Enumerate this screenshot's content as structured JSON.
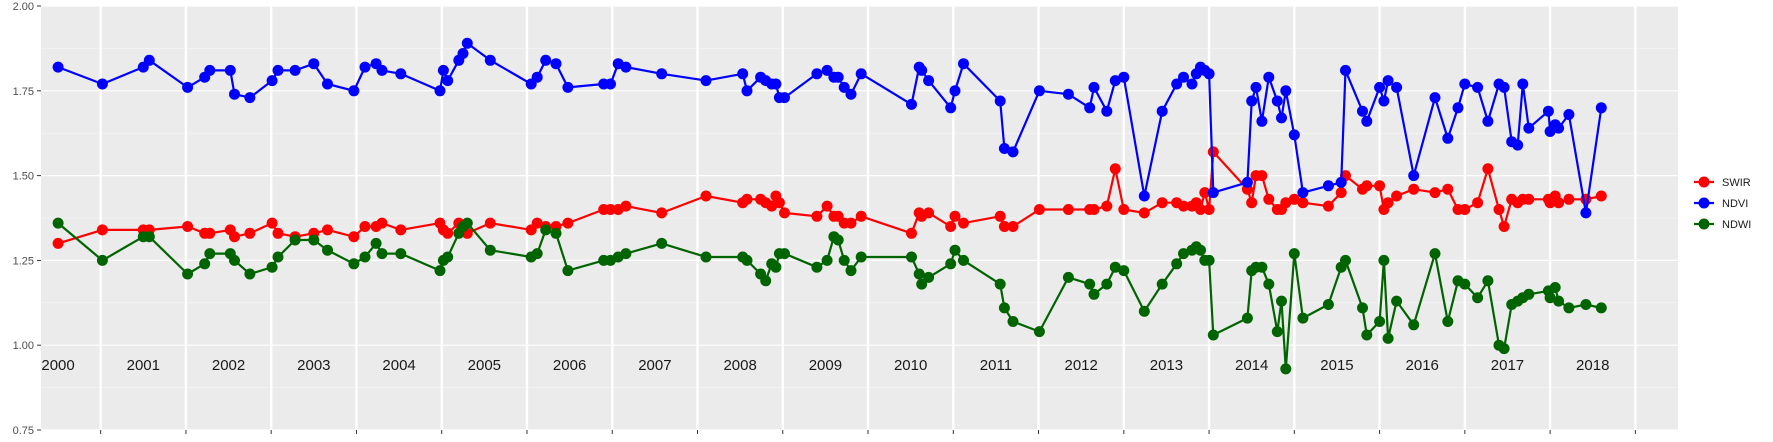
{
  "chart_data": {
    "type": "line",
    "title": "",
    "xlabel": "",
    "ylabel": "",
    "ylim": [
      0.75,
      2.0
    ],
    "yticks": [
      "0.75",
      "1.00",
      "1.25",
      "1.50",
      "1.75",
      "2.00"
    ],
    "xlim": [
      1999.8,
      2019.0
    ],
    "grid": true,
    "background": "#ebebeb",
    "legend_position": "right",
    "year_labels": [
      "2000",
      "2001",
      "2002",
      "2003",
      "2004",
      "2005",
      "2006",
      "2007",
      "2008",
      "2009",
      "2010",
      "2011",
      "2012",
      "2013",
      "2014",
      "2015",
      "2016",
      "2017",
      "2018"
    ],
    "series": [
      {
        "name": "SWIR",
        "color": "#ff0000",
        "x": [
          2000.0,
          2000.52,
          2001.0,
          2001.07,
          2001.52,
          2001.72,
          2001.78,
          2002.02,
          2002.07,
          2002.25,
          2002.51,
          2002.58,
          2002.78,
          2003.0,
          2003.16,
          2003.47,
          2003.6,
          2003.73,
          2003.8,
          2004.02,
          2004.48,
          2004.52,
          2004.57,
          2004.7,
          2004.75,
          2004.8,
          2005.07,
          2005.55,
          2005.62,
          2005.72,
          2005.84,
          2005.98,
          2006.4,
          2006.48,
          2006.57,
          2006.66,
          2007.08,
          2007.6,
          2008.03,
          2008.08,
          2008.24,
          2008.3,
          2008.37,
          2008.42,
          2008.46,
          2008.52,
          2008.9,
          2009.02,
          2009.1,
          2009.15,
          2009.22,
          2009.3,
          2009.42,
          2010.01,
          2010.1,
          2010.13,
          2010.21,
          2010.47,
          2010.52,
          2010.62,
          2011.05,
          2011.1,
          2011.2,
          2011.51,
          2011.85,
          2012.1,
          2012.15,
          2012.3,
          2012.4,
          2012.5,
          2012.74,
          2012.95,
          2013.12,
          2013.2,
          2013.3,
          2013.35,
          2013.4,
          2013.45,
          2013.5,
          2013.55,
          2013.95,
          2014.0,
          2014.05,
          2014.12,
          2014.2,
          2014.3,
          2014.35,
          2014.4,
          2014.5,
          2014.6,
          2014.9,
          2015.05,
          2015.1,
          2015.3,
          2015.35,
          2015.5,
          2015.55,
          2015.6,
          2015.7,
          2015.9,
          2016.15,
          2016.3,
          2016.42,
          2016.5,
          2016.65,
          2016.77,
          2016.9,
          2016.96,
          2017.05,
          2017.12,
          2017.18,
          2017.25,
          2017.48,
          2017.5,
          2017.56,
          2017.6,
          2017.72,
          2017.92,
          2018.1
        ],
        "y": [
          1.3,
          1.34,
          1.34,
          1.34,
          1.35,
          1.33,
          1.33,
          1.34,
          1.32,
          1.33,
          1.36,
          1.33,
          1.32,
          1.33,
          1.34,
          1.32,
          1.35,
          1.35,
          1.36,
          1.34,
          1.36,
          1.34,
          1.33,
          1.36,
          1.35,
          1.33,
          1.36,
          1.34,
          1.36,
          1.35,
          1.35,
          1.36,
          1.4,
          1.4,
          1.4,
          1.41,
          1.39,
          1.44,
          1.42,
          1.43,
          1.43,
          1.42,
          1.41,
          1.44,
          1.42,
          1.39,
          1.38,
          1.41,
          1.38,
          1.38,
          1.36,
          1.36,
          1.38,
          1.33,
          1.39,
          1.38,
          1.39,
          1.35,
          1.38,
          1.36,
          1.38,
          1.35,
          1.35,
          1.4,
          1.4,
          1.4,
          1.4,
          1.41,
          1.52,
          1.4,
          1.39,
          1.42,
          1.42,
          1.41,
          1.41,
          1.42,
          1.4,
          1.45,
          1.4,
          1.57,
          1.46,
          1.42,
          1.5,
          1.5,
          1.43,
          1.4,
          1.4,
          1.42,
          1.43,
          1.42,
          1.41,
          1.45,
          1.5,
          1.46,
          1.47,
          1.47,
          1.4,
          1.42,
          1.44,
          1.46,
          1.45,
          1.46,
          1.4,
          1.4,
          1.42,
          1.52,
          1.4,
          1.35,
          1.43,
          1.42,
          1.43,
          1.43,
          1.43,
          1.42,
          1.44,
          1.42,
          1.43,
          1.43,
          1.44
        ]
      },
      {
        "name": "NDVI",
        "color": "#0000ff",
        "x": [
          2000.0,
          2000.52,
          2001.0,
          2001.07,
          2001.52,
          2001.72,
          2001.78,
          2002.02,
          2002.07,
          2002.25,
          2002.51,
          2002.58,
          2002.78,
          2003.0,
          2003.16,
          2003.47,
          2003.6,
          2003.73,
          2003.8,
          2004.02,
          2004.48,
          2004.52,
          2004.57,
          2004.7,
          2004.75,
          2004.8,
          2005.07,
          2005.55,
          2005.62,
          2005.72,
          2005.84,
          2005.98,
          2006.4,
          2006.48,
          2006.57,
          2006.66,
          2007.08,
          2007.6,
          2008.03,
          2008.08,
          2008.24,
          2008.3,
          2008.37,
          2008.42,
          2008.46,
          2008.52,
          2008.9,
          2009.02,
          2009.1,
          2009.15,
          2009.22,
          2009.3,
          2009.42,
          2010.01,
          2010.1,
          2010.13,
          2010.21,
          2010.47,
          2010.52,
          2010.62,
          2011.05,
          2011.1,
          2011.2,
          2011.51,
          2011.85,
          2012.1,
          2012.15,
          2012.3,
          2012.4,
          2012.5,
          2012.74,
          2012.95,
          2013.12,
          2013.2,
          2013.3,
          2013.35,
          2013.4,
          2013.45,
          2013.5,
          2013.55,
          2013.95,
          2014.0,
          2014.05,
          2014.12,
          2014.2,
          2014.3,
          2014.35,
          2014.4,
          2014.5,
          2014.6,
          2014.9,
          2015.05,
          2015.1,
          2015.3,
          2015.35,
          2015.5,
          2015.55,
          2015.6,
          2015.7,
          2015.9,
          2016.15,
          2016.3,
          2016.42,
          2016.5,
          2016.65,
          2016.77,
          2016.9,
          2016.96,
          2017.05,
          2017.12,
          2017.18,
          2017.25,
          2017.48,
          2017.5,
          2017.56,
          2017.6,
          2017.72,
          2017.92,
          2018.1
        ],
        "y": [
          1.82,
          1.77,
          1.82,
          1.84,
          1.76,
          1.79,
          1.81,
          1.81,
          1.74,
          1.73,
          1.78,
          1.81,
          1.81,
          1.83,
          1.77,
          1.75,
          1.82,
          1.83,
          1.81,
          1.8,
          1.75,
          1.81,
          1.78,
          1.84,
          1.86,
          1.89,
          1.84,
          1.77,
          1.79,
          1.84,
          1.83,
          1.76,
          1.77,
          1.77,
          1.83,
          1.82,
          1.8,
          1.78,
          1.8,
          1.75,
          1.79,
          1.78,
          1.77,
          1.77,
          1.73,
          1.73,
          1.8,
          1.81,
          1.79,
          1.79,
          1.76,
          1.74,
          1.8,
          1.71,
          1.82,
          1.81,
          1.78,
          1.7,
          1.75,
          1.83,
          1.72,
          1.58,
          1.57,
          1.75,
          1.74,
          1.7,
          1.76,
          1.69,
          1.78,
          1.79,
          1.44,
          1.69,
          1.77,
          1.79,
          1.77,
          1.8,
          1.82,
          1.81,
          1.8,
          1.45,
          1.48,
          1.72,
          1.76,
          1.66,
          1.79,
          1.72,
          1.67,
          1.75,
          1.62,
          1.45,
          1.47,
          1.48,
          1.81,
          1.69,
          1.66,
          1.76,
          1.72,
          1.78,
          1.76,
          1.5,
          1.73,
          1.61,
          1.7,
          1.77,
          1.76,
          1.66,
          1.77,
          1.76,
          1.6,
          1.59,
          1.77,
          1.64,
          1.69,
          1.63,
          1.65,
          1.64,
          1.68,
          1.39,
          1.7
        ]
      },
      {
        "name": "NDWI",
        "color": "#006400",
        "x": [
          2000.0,
          2000.52,
          2001.0,
          2001.07,
          2001.52,
          2001.72,
          2001.78,
          2002.02,
          2002.07,
          2002.25,
          2002.51,
          2002.58,
          2002.78,
          2003.0,
          2003.16,
          2003.47,
          2003.6,
          2003.73,
          2003.8,
          2004.02,
          2004.48,
          2004.52,
          2004.57,
          2004.7,
          2004.75,
          2004.8,
          2005.07,
          2005.55,
          2005.62,
          2005.72,
          2005.84,
          2005.98,
          2006.4,
          2006.48,
          2006.57,
          2006.66,
          2007.08,
          2007.6,
          2008.03,
          2008.08,
          2008.24,
          2008.3,
          2008.37,
          2008.42,
          2008.46,
          2008.52,
          2008.9,
          2009.02,
          2009.1,
          2009.15,
          2009.22,
          2009.3,
          2009.42,
          2010.01,
          2010.1,
          2010.13,
          2010.21,
          2010.47,
          2010.52,
          2010.62,
          2011.05,
          2011.1,
          2011.2,
          2011.51,
          2011.85,
          2012.1,
          2012.15,
          2012.3,
          2012.4,
          2012.5,
          2012.74,
          2012.95,
          2013.12,
          2013.2,
          2013.3,
          2013.35,
          2013.4,
          2013.45,
          2013.5,
          2013.55,
          2013.95,
          2014.0,
          2014.05,
          2014.12,
          2014.2,
          2014.3,
          2014.35,
          2014.4,
          2014.5,
          2014.6,
          2014.9,
          2015.05,
          2015.1,
          2015.3,
          2015.35,
          2015.5,
          2015.55,
          2015.6,
          2015.7,
          2015.9,
          2016.15,
          2016.3,
          2016.42,
          2016.5,
          2016.65,
          2016.77,
          2016.9,
          2016.96,
          2017.05,
          2017.12,
          2017.18,
          2017.25,
          2017.48,
          2017.5,
          2017.56,
          2017.6,
          2017.72,
          2017.92,
          2018.1
        ],
        "y": [
          1.36,
          1.25,
          1.32,
          1.32,
          1.21,
          1.24,
          1.27,
          1.27,
          1.25,
          1.21,
          1.23,
          1.26,
          1.31,
          1.31,
          1.28,
          1.24,
          1.26,
          1.3,
          1.27,
          1.27,
          1.22,
          1.25,
          1.26,
          1.33,
          1.35,
          1.36,
          1.28,
          1.26,
          1.27,
          1.34,
          1.33,
          1.22,
          1.25,
          1.25,
          1.26,
          1.27,
          1.3,
          1.26,
          1.26,
          1.25,
          1.21,
          1.19,
          1.24,
          1.23,
          1.27,
          1.27,
          1.23,
          1.25,
          1.32,
          1.31,
          1.25,
          1.22,
          1.26,
          1.26,
          1.21,
          1.18,
          1.2,
          1.24,
          1.28,
          1.25,
          1.18,
          1.11,
          1.07,
          1.04,
          1.2,
          1.18,
          1.15,
          1.18,
          1.23,
          1.22,
          1.1,
          1.18,
          1.24,
          1.27,
          1.28,
          1.29,
          1.28,
          1.25,
          1.25,
          1.03,
          1.08,
          1.22,
          1.23,
          1.23,
          1.18,
          1.04,
          1.13,
          0.93,
          1.27,
          1.08,
          1.12,
          1.23,
          1.25,
          1.11,
          1.03,
          1.07,
          1.25,
          1.02,
          1.13,
          1.06,
          1.27,
          1.07,
          1.19,
          1.18,
          1.14,
          1.19,
          1.0,
          0.99,
          1.12,
          1.13,
          1.14,
          1.15,
          1.16,
          1.14,
          1.17,
          1.13,
          1.11,
          1.12,
          1.11
        ]
      }
    ]
  }
}
